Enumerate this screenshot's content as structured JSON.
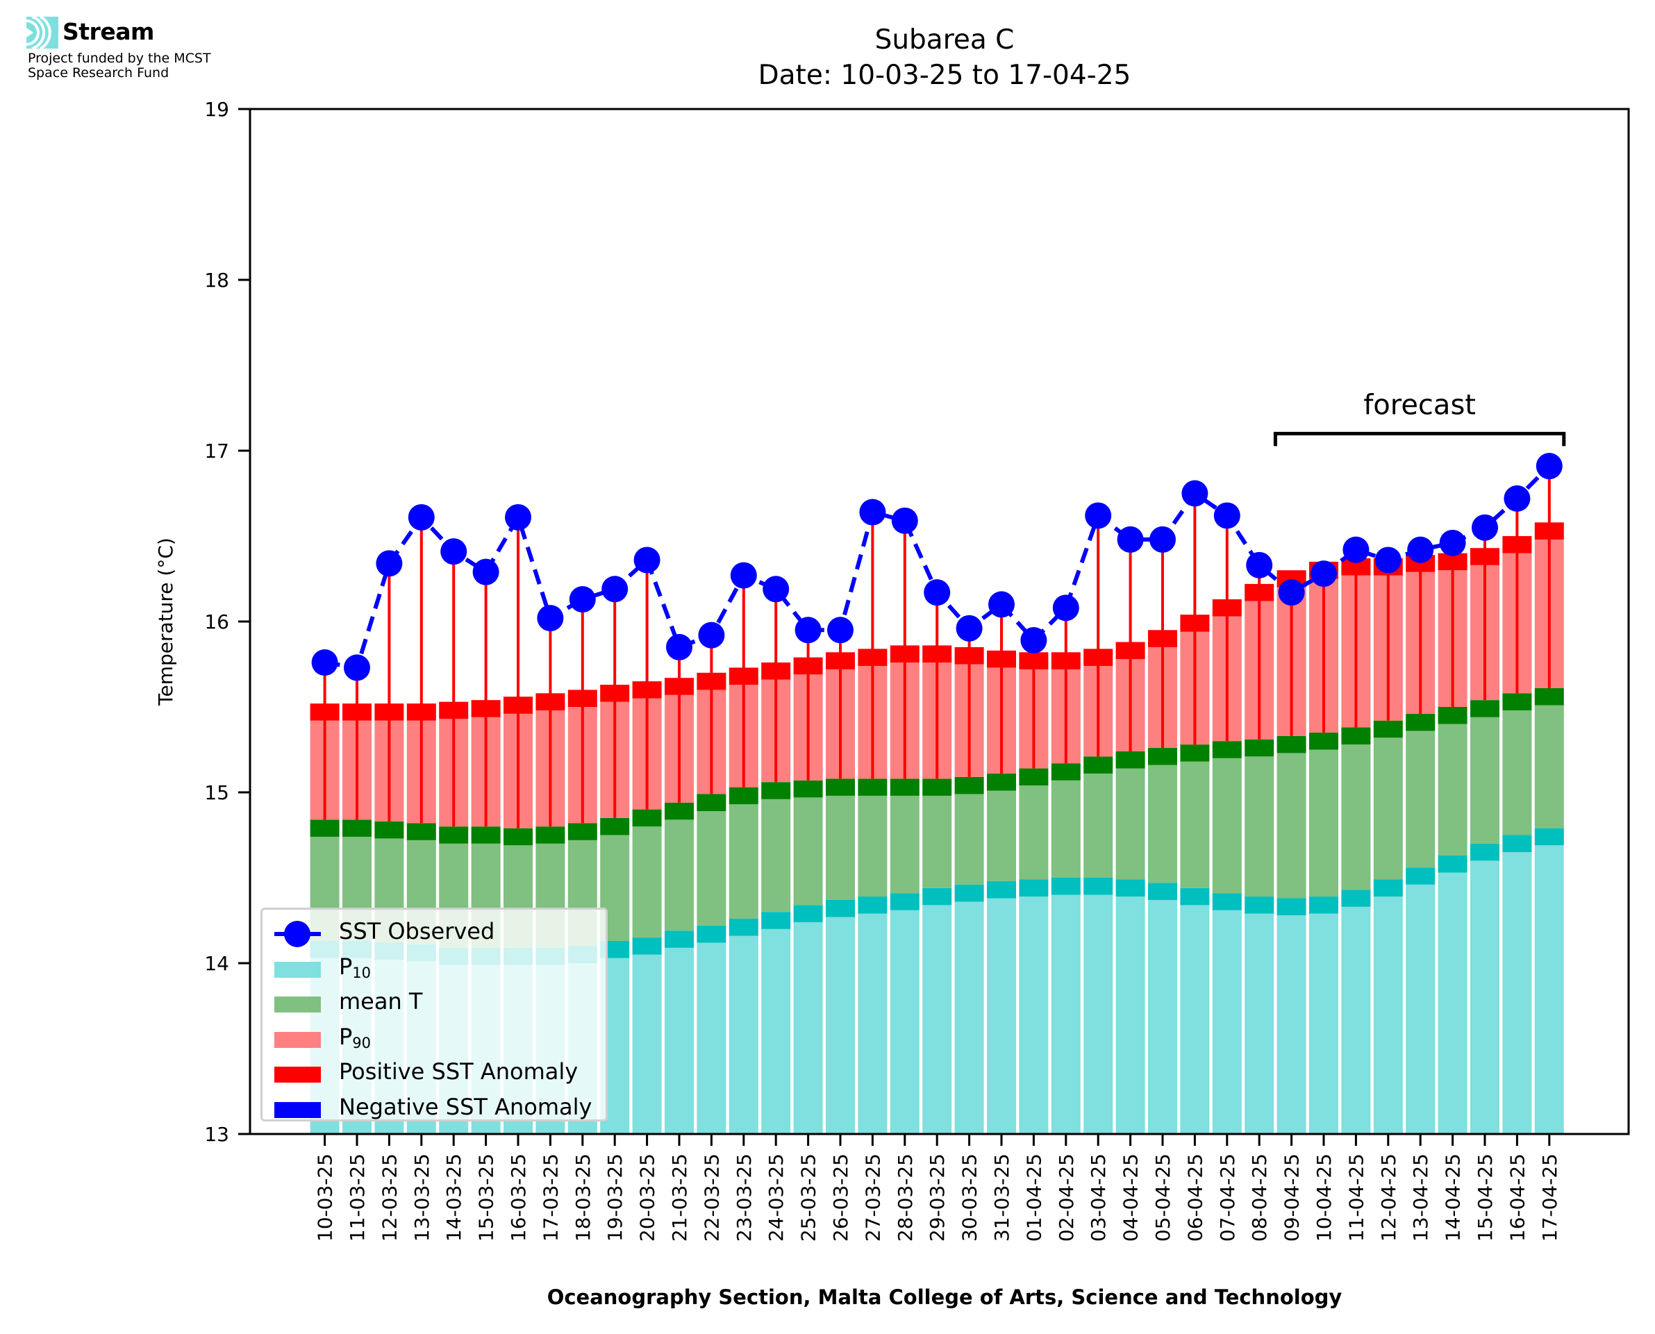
{
  "branding": {
    "logo_icon": "stream-waves-icon",
    "logo_text": "Stream",
    "funding_line1": "Project funded by the MCST",
    "funding_line2": "Space Research Fund"
  },
  "colors": {
    "p10_light": "#80dfdf",
    "p10_dark": "#00bfbf",
    "mean_light": "#80c080",
    "mean_dark": "#008000",
    "p90_light": "#ff8080",
    "p90_dark": "#ff0000",
    "positive_anomaly": "#ff0000",
    "negative_anomaly": "#0000ff",
    "observed": "#0000ff",
    "logo": "#7fdfdf"
  },
  "chart_data": {
    "type": "bar",
    "title": "Subarea C",
    "subtitle": "Date: 10-03-25 to 17-04-25",
    "xlabel": "Oceanography Section, Malta College of Arts, Science and Technology",
    "ylabel": "Temperature (°C)",
    "ylim": [
      13,
      19
    ],
    "yticks": [
      13,
      14,
      15,
      16,
      17,
      18,
      19
    ],
    "grid": false,
    "legend_position": "lower-left",
    "band_thickness": 0.1,
    "categories": [
      "10-03-25",
      "11-03-25",
      "12-03-25",
      "13-03-25",
      "14-03-25",
      "15-03-25",
      "16-03-25",
      "17-03-25",
      "18-03-25",
      "19-03-25",
      "20-03-25",
      "21-03-25",
      "22-03-25",
      "23-03-25",
      "24-03-25",
      "25-03-25",
      "26-03-25",
      "27-03-25",
      "28-03-25",
      "29-03-25",
      "30-03-25",
      "31-03-25",
      "01-04-25",
      "02-04-25",
      "03-04-25",
      "04-04-25",
      "05-04-25",
      "06-04-25",
      "07-04-25",
      "08-04-25",
      "09-04-25",
      "10-04-25",
      "11-04-25",
      "12-04-25",
      "13-04-25",
      "14-04-25",
      "15-04-25",
      "16-04-25",
      "17-04-25"
    ],
    "series": [
      {
        "name": "SST Observed",
        "key": "observed",
        "type": "line-dashed-markers",
        "values": [
          15.76,
          15.73,
          16.34,
          16.61,
          16.41,
          16.29,
          16.61,
          16.02,
          16.13,
          16.19,
          16.36,
          15.85,
          15.92,
          16.27,
          16.19,
          15.95,
          15.95,
          16.64,
          16.59,
          16.17,
          15.96,
          16.1,
          15.89,
          16.08,
          16.62,
          16.48,
          16.48,
          16.75,
          16.62,
          16.33,
          16.17,
          16.28,
          16.42,
          16.36,
          16.42,
          16.46,
          16.55,
          16.72,
          16.91
        ]
      },
      {
        "name": "P10",
        "key": "p10",
        "type": "bar",
        "values": [
          14.13,
          14.13,
          14.12,
          14.11,
          14.09,
          14.09,
          14.09,
          14.09,
          14.1,
          14.13,
          14.15,
          14.19,
          14.22,
          14.26,
          14.3,
          14.34,
          14.37,
          14.39,
          14.41,
          14.44,
          14.46,
          14.48,
          14.49,
          14.5,
          14.5,
          14.49,
          14.47,
          14.44,
          14.41,
          14.39,
          14.38,
          14.39,
          14.43,
          14.49,
          14.56,
          14.63,
          14.7,
          14.75,
          14.79
        ]
      },
      {
        "name": "mean T",
        "key": "mean",
        "type": "bar",
        "values": [
          14.84,
          14.84,
          14.83,
          14.82,
          14.8,
          14.8,
          14.79,
          14.8,
          14.82,
          14.85,
          14.9,
          14.94,
          14.99,
          15.03,
          15.06,
          15.07,
          15.08,
          15.08,
          15.08,
          15.08,
          15.09,
          15.11,
          15.14,
          15.17,
          15.21,
          15.24,
          15.26,
          15.28,
          15.3,
          15.31,
          15.33,
          15.35,
          15.38,
          15.42,
          15.46,
          15.5,
          15.54,
          15.58,
          15.61
        ]
      },
      {
        "name": "P90",
        "key": "p90",
        "type": "bar",
        "values": [
          15.52,
          15.52,
          15.52,
          15.52,
          15.53,
          15.54,
          15.56,
          15.58,
          15.6,
          15.63,
          15.65,
          15.67,
          15.7,
          15.73,
          15.76,
          15.79,
          15.82,
          15.84,
          15.86,
          15.86,
          15.85,
          15.83,
          15.82,
          15.82,
          15.84,
          15.88,
          15.95,
          16.04,
          16.13,
          16.22,
          16.3,
          16.35,
          16.37,
          16.37,
          16.39,
          16.4,
          16.43,
          16.5,
          16.58
        ]
      }
    ],
    "legend": [
      {
        "label": "SST Observed",
        "sub": "",
        "kind": "line-marker",
        "color_key": "observed"
      },
      {
        "label": "P",
        "sub": "10",
        "kind": "patch",
        "color_key": "p10_light"
      },
      {
        "label": "mean T",
        "sub": "",
        "kind": "patch",
        "color_key": "mean_light"
      },
      {
        "label": "P",
        "sub": "90",
        "kind": "patch",
        "color_key": "p90_light"
      },
      {
        "label": "Positive SST Anomaly",
        "sub": "",
        "kind": "patch",
        "color_key": "positive_anomaly"
      },
      {
        "label": "Negative SST Anomaly",
        "sub": "",
        "kind": "patch",
        "color_key": "negative_anomaly"
      }
    ],
    "annotation": {
      "text": "forecast",
      "from_category": "09-04-25",
      "to_category": "17-04-25",
      "level": 17.1
    }
  }
}
